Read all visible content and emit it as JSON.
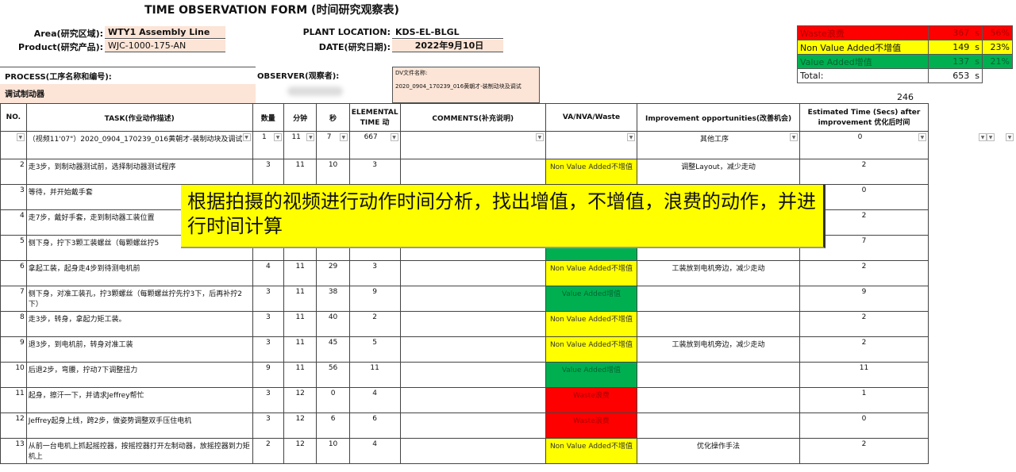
{
  "title": "TIME OBSERVATION FORM (时间研究观察表)",
  "header": {
    "area_label": "Area(研究区域):",
    "area": "WTY1 Assembly Line",
    "product_label": "Product(研究产品):",
    "product": "WJC-1000-175-AN",
    "plant_label": "PLANT LOCATION:",
    "plant": "KDS-EL-BLGL",
    "date_label": "DATE(研究日期):",
    "date": "2022年9月10日",
    "process_label": "PROCESS(工序名称和编号):",
    "process": "调试制动器",
    "observer_label": "OBSERVER(观察者):",
    "dv_label": "DV文件名称:",
    "dv": "2020_0904_170239_016黄朝才-装制动块及调试"
  },
  "summary": [
    {
      "label": "Waste浪费",
      "value": "367",
      "unit": "s",
      "pct": "56%",
      "color": "#ff0000"
    },
    {
      "label": "Non Value Added不增值",
      "value": "149",
      "unit": "s",
      "pct": "23%",
      "color": "#ffff00"
    },
    {
      "label": "Value Added增值",
      "value": "137",
      "unit": "s",
      "pct": "21%",
      "color": "#00b050"
    },
    {
      "label": "Total:",
      "value": "653",
      "unit": "s",
      "pct": ""
    }
  ],
  "total_improved": "246",
  "columns": [
    "NO.",
    "TASK(作业动作描述)",
    "数量",
    "分钟",
    "秒",
    "ELEMENTAL TIME 动",
    "COMMENTS(补充说明)",
    "VA/NVA/Waste",
    "Improvement opportunities(改善机会)",
    "Estimated Time (Secs) after improvement 优化后时间"
  ],
  "filter_row": {
    "task": "（视频11'07\"）2020_0904_170239_016黄朝才-装制动块及调试",
    "qty": "1",
    "min": "11",
    "sec": "7",
    "elem": "667",
    "improve": "其他工序",
    "est": "0"
  },
  "rows": [
    {
      "no": "2",
      "task": "走3步，到制动器测试前，选择制动器测试程序",
      "qty": "3",
      "min": "11",
      "sec": "10",
      "elem": "3",
      "cls": "Non Value Added不增值",
      "type": "nva",
      "improve": "调整Layout，减少走动",
      "est": "2"
    },
    {
      "no": "3",
      "task": "等待，并开始戴手套",
      "qty": "",
      "min": "",
      "sec": "",
      "elem": "",
      "cls": "",
      "type": "",
      "improve": "",
      "est": "0"
    },
    {
      "no": "4",
      "task": "走7步，戴好手套，走到制动器工装位置",
      "qty": "",
      "min": "",
      "sec": "",
      "elem": "",
      "cls": "",
      "type": "",
      "improve": "",
      "est": "2"
    },
    {
      "no": "5",
      "task": "侧下身，拧下3颗工装螺丝（每颗螺丝拧5",
      "qty": "",
      "min": "",
      "sec": "",
      "elem": "",
      "cls": "",
      "type": "va",
      "improve": "",
      "est": "7"
    },
    {
      "no": "6",
      "task": "拿起工装，起身走4步到待测电机前",
      "qty": "4",
      "min": "11",
      "sec": "29",
      "elem": "3",
      "cls": "Non Value Added不增值",
      "type": "nva",
      "improve": "工装放到电机旁边，减少走动",
      "est": "2"
    },
    {
      "no": "7",
      "task": "侧下身，对准工装孔，拧3颗螺丝（每颗螺丝拧先拧3下，后再补拧2下）",
      "qty": "3",
      "min": "11",
      "sec": "38",
      "elem": "9",
      "cls": "Value Added增值",
      "type": "va",
      "improve": "",
      "est": "9"
    },
    {
      "no": "8",
      "task": "走3步，转身，拿起力矩工装。",
      "qty": "3",
      "min": "11",
      "sec": "40",
      "elem": "2",
      "cls": "Non Value Added不增值",
      "type": "nva",
      "improve": "",
      "est": "2"
    },
    {
      "no": "9",
      "task": "退3步，到电机前，转身对准工装",
      "qty": "3",
      "min": "11",
      "sec": "45",
      "elem": "5",
      "cls": "Non Value Added不增值",
      "type": "nva",
      "improve": "工装放到电机旁边，减少走动",
      "est": "2"
    },
    {
      "no": "10",
      "task": "后退2步，弯腰，拧动7下调整扭力",
      "qty": "9",
      "min": "11",
      "sec": "56",
      "elem": "11",
      "cls": "Value Added增值",
      "type": "va",
      "improve": "",
      "est": "11"
    },
    {
      "no": "11",
      "task": "起身，擦汗一下，并请求Jeffrey帮忙",
      "qty": "3",
      "min": "12",
      "sec": "0",
      "elem": "4",
      "cls": "Waste浪费",
      "type": "w",
      "improve": "",
      "est": "1"
    },
    {
      "no": "12",
      "task": "Jeffrey起身上线，跨2步，做姿势调整双手压住电机",
      "qty": "3",
      "min": "12",
      "sec": "6",
      "elem": "6",
      "cls": "Waste浪费",
      "type": "w",
      "improve": "",
      "est": "0"
    },
    {
      "no": "13",
      "task": "从前一台电机上抓起摇控器，按摇控器打开左制动器，放摇控器到力矩机上",
      "qty": "2",
      "min": "12",
      "sec": "10",
      "elem": "4",
      "cls": "Non Value Added不增值",
      "type": "nva",
      "improve": "优化操作手法",
      "est": "2"
    }
  ],
  "overlay": "根据拍摄的视频进行动作时间分析，找出增值，不增值，浪费的动作，并进行时间计算"
}
